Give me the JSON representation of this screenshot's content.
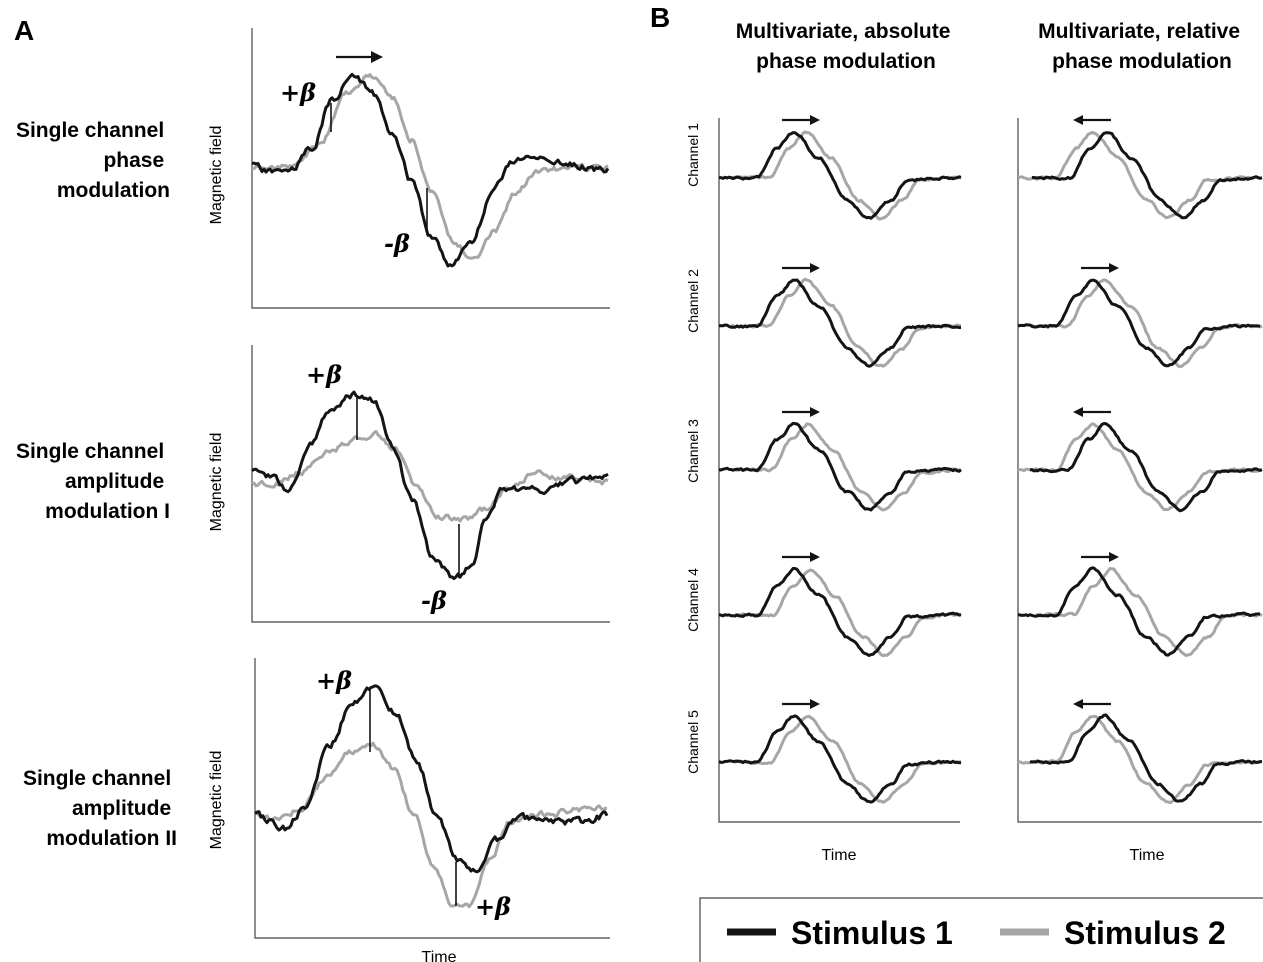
{
  "panels": {
    "A": {
      "letter": "A",
      "rows": [
        {
          "label_lines": [
            "Single channel",
            "phase",
            "modulation"
          ],
          "ylabel": "Magnetic field",
          "beta_labels": [
            "+β",
            "-β"
          ],
          "modulation": "phase",
          "arrow_direction": "right"
        },
        {
          "label_lines": [
            "Single channel",
            "amplitude",
            "modulation I"
          ],
          "ylabel": "Magnetic field",
          "beta_labels": [
            "+β",
            "-β"
          ],
          "modulation": "amplitude-I"
        },
        {
          "label_lines": [
            "Single channel",
            "amplitude",
            "modulation II"
          ],
          "ylabel": "Magnetic field",
          "beta_labels": [
            "+β",
            "+β"
          ],
          "modulation": "amplitude-II"
        }
      ],
      "xlabel": "Time"
    },
    "B": {
      "letter": "B",
      "columns": [
        {
          "title_lines": [
            "Multivariate, absolute",
            "phase modulation"
          ],
          "arrows": [
            "right",
            "right",
            "right",
            "right",
            "right"
          ],
          "xlabel": "Time"
        },
        {
          "title_lines": [
            "Multivariate, relative",
            "phase modulation"
          ],
          "arrows": [
            "left",
            "right",
            "left",
            "right",
            "left"
          ],
          "xlabel": "Time"
        }
      ],
      "channels": [
        "Channel 1",
        "Channel 2",
        "Channel 3",
        "Channel 4",
        "Channel 5"
      ]
    }
  },
  "legend": {
    "items": [
      {
        "label": "Stimulus 1",
        "color": "#141414"
      },
      {
        "label": "Stimulus 2",
        "color": "#a6a6a6"
      }
    ]
  },
  "colors": {
    "stimulus1": "#141414",
    "stimulus2": "#a6a6a6"
  }
}
